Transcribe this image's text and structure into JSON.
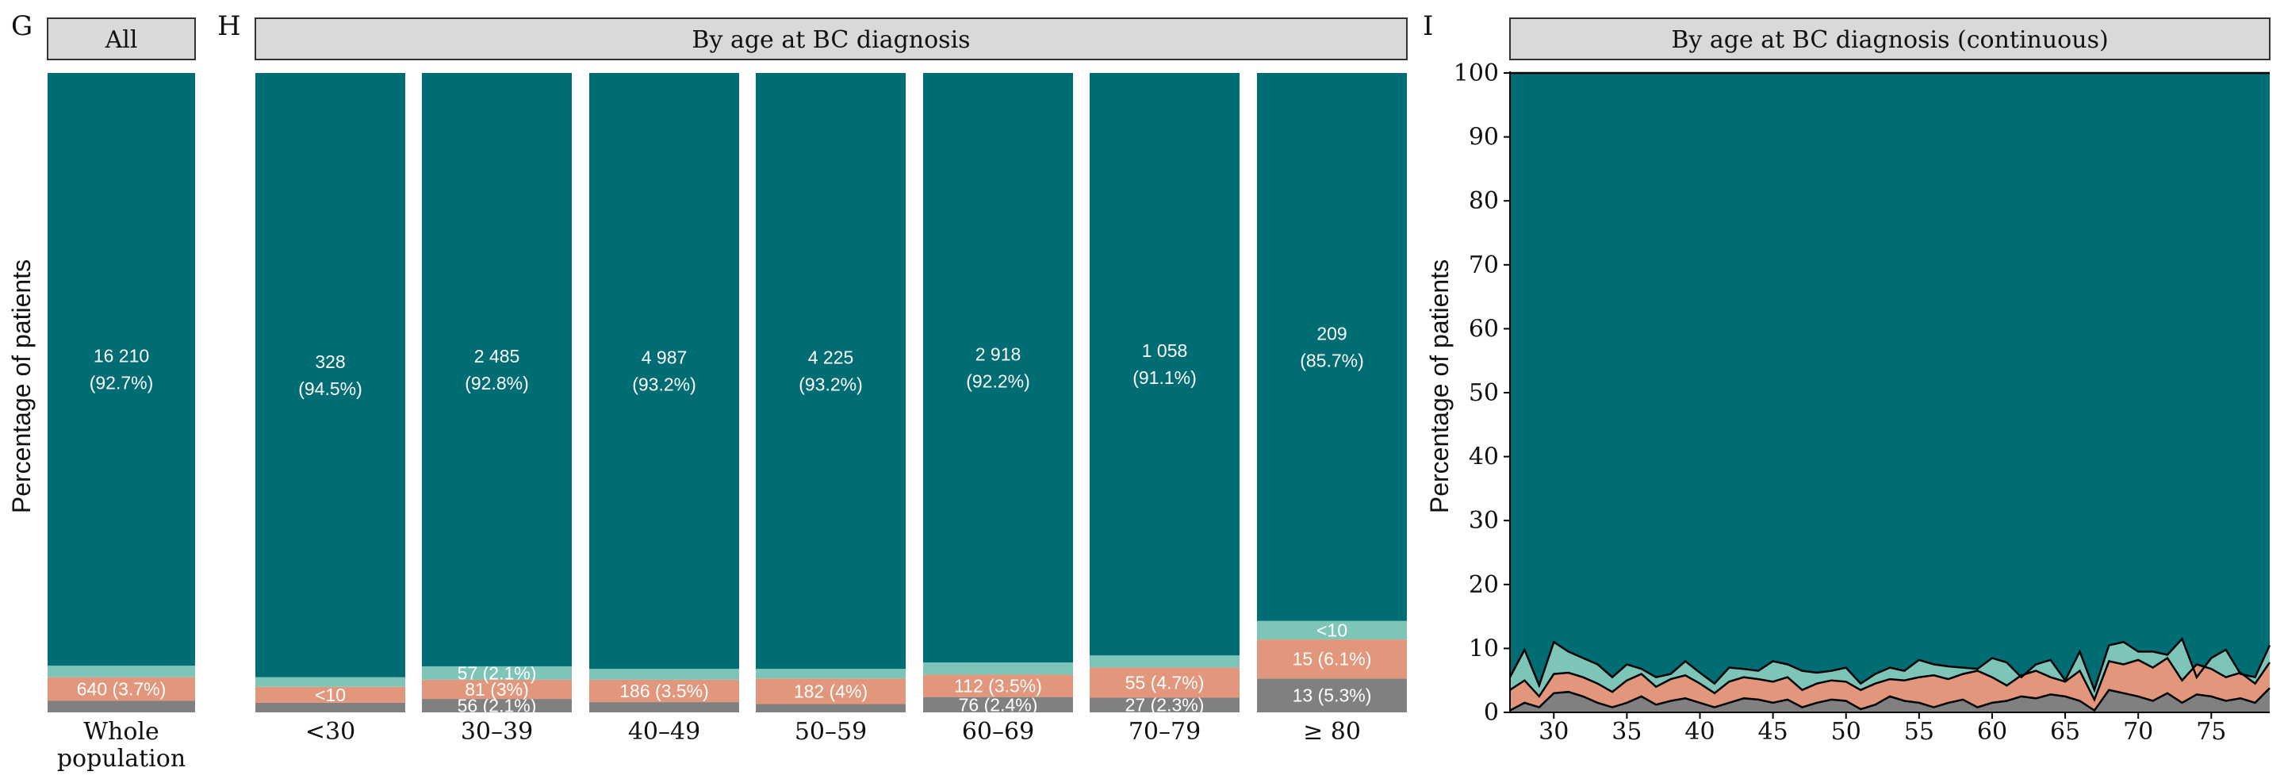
{
  "colors": {
    "main": "#006d75",
    "light": "#7dc5b8",
    "salmon": "#e2967b",
    "grey": "#808080"
  },
  "panels": {
    "G": {
      "letter": "G",
      "strip": "All",
      "ylabel": "Percentage of patients"
    },
    "H": {
      "letter": "H",
      "strip": "By age at BC diagnosis"
    },
    "I": {
      "letter": "I",
      "strip": "By age at BC diagnosis (continuous)",
      "ylabel": "Percentage of patients"
    }
  },
  "chart_data": [
    {
      "type": "bar",
      "stacked": true,
      "panel": "G",
      "categories": [
        "Whole population"
      ],
      "category_lines": [
        [
          "Whole",
          "population"
        ]
      ],
      "ylim": [
        0,
        100
      ],
      "segments": [
        [
          {
            "color": "grey",
            "pct": 1.8,
            "label": ""
          },
          {
            "color": "salmon",
            "pct": 3.7,
            "label": "640 (3.7%)"
          },
          {
            "color": "light",
            "pct": 1.8,
            "label": ""
          },
          {
            "color": "main",
            "pct": 92.7,
            "label": "16 210\n(92.7%)"
          }
        ]
      ]
    },
    {
      "type": "bar",
      "stacked": true,
      "panel": "H",
      "categories": [
        "<30",
        "30–39",
        "40–49",
        "50–59",
        "60–69",
        "70–79",
        "≥ 80"
      ],
      "ylim": [
        0,
        100
      ],
      "segments": [
        [
          {
            "color": "grey",
            "pct": 1.5,
            "label": ""
          },
          {
            "color": "salmon",
            "pct": 2.5,
            "label": "<10"
          },
          {
            "color": "light",
            "pct": 1.5,
            "label": ""
          },
          {
            "color": "main",
            "pct": 94.5,
            "label": "328\n(94.5%)"
          }
        ],
        [
          {
            "color": "grey",
            "pct": 2.1,
            "label": "56 (2.1%)"
          },
          {
            "color": "salmon",
            "pct": 3.0,
            "label": "81 (3%)"
          },
          {
            "color": "light",
            "pct": 2.1,
            "label": "57 (2.1%)"
          },
          {
            "color": "main",
            "pct": 92.8,
            "label": "2 485\n(92.8%)"
          }
        ],
        [
          {
            "color": "grey",
            "pct": 1.6,
            "label": ""
          },
          {
            "color": "salmon",
            "pct": 3.5,
            "label": "186 (3.5%)"
          },
          {
            "color": "light",
            "pct": 1.7,
            "label": ""
          },
          {
            "color": "main",
            "pct": 93.2,
            "label": "4 987\n(93.2%)"
          }
        ],
        [
          {
            "color": "grey",
            "pct": 1.3,
            "label": ""
          },
          {
            "color": "salmon",
            "pct": 4.0,
            "label": "182 (4%)"
          },
          {
            "color": "light",
            "pct": 1.5,
            "label": ""
          },
          {
            "color": "main",
            "pct": 93.2,
            "label": "4 225\n(93.2%)"
          }
        ],
        [
          {
            "color": "grey",
            "pct": 2.4,
            "label": "76 (2.4%)"
          },
          {
            "color": "salmon",
            "pct": 3.5,
            "label": "112 (3.5%)"
          },
          {
            "color": "light",
            "pct": 1.9,
            "label": ""
          },
          {
            "color": "main",
            "pct": 92.2,
            "label": "2 918\n(92.2%)"
          }
        ],
        [
          {
            "color": "grey",
            "pct": 2.3,
            "label": "27 (2.3%)"
          },
          {
            "color": "salmon",
            "pct": 4.7,
            "label": "55 (4.7%)"
          },
          {
            "color": "light",
            "pct": 1.9,
            "label": ""
          },
          {
            "color": "main",
            "pct": 91.1,
            "label": "1 058\n(91.1%)"
          }
        ],
        [
          {
            "color": "grey",
            "pct": 5.3,
            "label": "13 (5.3%)"
          },
          {
            "color": "salmon",
            "pct": 6.1,
            "label": "15 (6.1%)"
          },
          {
            "color": "light",
            "pct": 2.9,
            "label": "<10"
          },
          {
            "color": "main",
            "pct": 85.7,
            "label": "209\n(85.7%)"
          }
        ]
      ]
    },
    {
      "type": "area",
      "stacked": true,
      "panel": "I",
      "xlim": [
        27,
        79
      ],
      "ylim": [
        0,
        100
      ],
      "xticks": [
        30,
        35,
        40,
        45,
        50,
        55,
        60,
        65,
        70,
        75
      ],
      "yticks": [
        0,
        10,
        20,
        30,
        40,
        50,
        60,
        70,
        80,
        90,
        100
      ],
      "x": [
        27,
        28,
        29,
        30,
        31,
        32,
        33,
        34,
        35,
        36,
        37,
        38,
        39,
        40,
        41,
        42,
        43,
        44,
        45,
        46,
        47,
        48,
        49,
        50,
        51,
        52,
        53,
        54,
        55,
        56,
        57,
        58,
        59,
        60,
        61,
        62,
        63,
        64,
        65,
        66,
        67,
        68,
        69,
        70,
        71,
        72,
        73,
        74,
        75,
        76,
        77,
        78,
        79
      ],
      "grey_top": [
        0.3,
        1.5,
        0.8,
        3.0,
        3.2,
        2.5,
        1.5,
        0.8,
        1.5,
        2.5,
        1.2,
        1.8,
        2.2,
        1.5,
        0.8,
        1.5,
        2.2,
        2.0,
        1.5,
        2.0,
        0.8,
        1.5,
        2.0,
        1.8,
        0.5,
        1.2,
        2.5,
        1.8,
        1.5,
        0.8,
        1.5,
        2.0,
        0.8,
        1.5,
        1.8,
        2.5,
        2.2,
        2.8,
        2.5,
        1.8,
        0.3,
        3.5,
        3.0,
        2.5,
        1.8,
        3.0,
        1.5,
        2.8,
        2.5,
        1.8,
        2.2,
        1.5,
        3.8
      ],
      "salmon_top": [
        3.5,
        5.0,
        2.5,
        6.0,
        6.2,
        5.5,
        4.5,
        3.2,
        5.0,
        6.0,
        4.0,
        5.2,
        5.8,
        4.5,
        3.0,
        4.8,
        5.5,
        5.2,
        4.8,
        5.5,
        3.5,
        4.5,
        5.0,
        4.8,
        3.5,
        4.5,
        5.2,
        5.0,
        5.5,
        5.8,
        5.2,
        6.0,
        6.5,
        5.5,
        4.2,
        5.8,
        6.5,
        5.5,
        4.8,
        6.5,
        2.0,
        8.0,
        7.5,
        8.2,
        7.0,
        8.5,
        5.0,
        7.5,
        6.8,
        5.5,
        6.2,
        4.5,
        7.8
      ],
      "light_top": [
        5.5,
        9.8,
        4.2,
        11.0,
        9.5,
        8.5,
        7.5,
        5.5,
        7.5,
        6.8,
        5.5,
        6.0,
        8.0,
        6.2,
        4.5,
        7.0,
        6.8,
        6.5,
        8.0,
        7.5,
        6.5,
        6.2,
        6.5,
        7.0,
        4.5,
        6.0,
        7.0,
        6.5,
        8.2,
        7.5,
        7.2,
        7.0,
        6.8,
        8.5,
        7.8,
        5.5,
        7.5,
        8.2,
        5.0,
        9.5,
        3.5,
        10.5,
        11.0,
        9.5,
        9.5,
        9.0,
        11.5,
        5.5,
        8.5,
        9.8,
        6.0,
        5.5,
        10.5
      ]
    }
  ]
}
